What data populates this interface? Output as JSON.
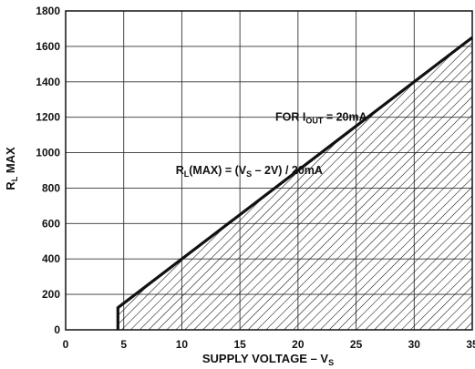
{
  "chart_data": {
    "type": "area",
    "title": "",
    "xlabel": "SUPPLY VOLTAGE  –  V",
    "xlabel_sub": "S",
    "ylabel": "R",
    "ylabel_sub": "L",
    "ylabel_suffix": " MAX",
    "xlim": [
      0,
      35
    ],
    "ylim": [
      0,
      1800
    ],
    "xticks": [
      0,
      5,
      10,
      15,
      20,
      25,
      30,
      35
    ],
    "yticks": [
      0,
      200,
      400,
      600,
      800,
      1000,
      1200,
      1400,
      1600,
      1800
    ],
    "grid": true,
    "series": [
      {
        "x": [
          4.5,
          4.5,
          35
        ],
        "y": [
          0,
          125,
          1650
        ],
        "fill": "hatched"
      }
    ],
    "annotations": [
      {
        "parts": [
          {
            "text": "FOR I",
            "sub": false
          },
          {
            "text": "OUT",
            "sub": true
          },
          {
            "text": " = 20mA",
            "sub": false
          }
        ],
        "x": 22,
        "y": 1200
      },
      {
        "parts": [
          {
            "text": "R",
            "sub": false
          },
          {
            "text": "L",
            "sub": true
          },
          {
            "text": "(MAX) = (V",
            "sub": false
          },
          {
            "text": "S",
            "sub": true
          },
          {
            "text": " – 2V) / 20mA",
            "sub": false
          }
        ],
        "x": 15.8,
        "y": 900
      }
    ]
  }
}
